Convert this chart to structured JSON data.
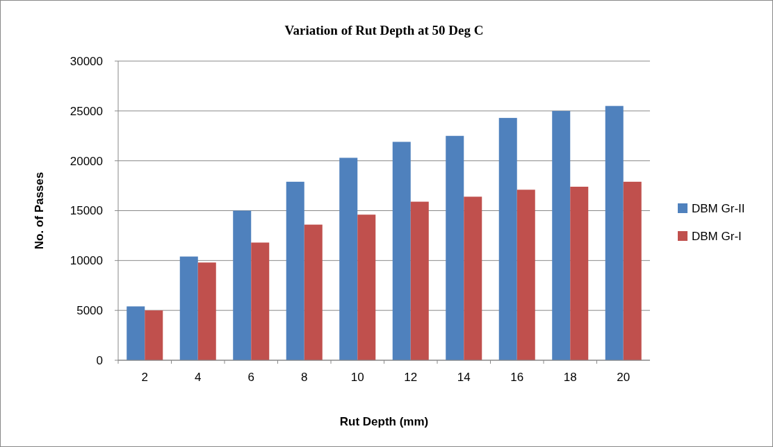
{
  "chart_data": {
    "type": "bar",
    "title": "Variation  of Rut Depth at 50 Deg C",
    "xlabel": "Rut Depth (mm)",
    "ylabel": "No. of Passes",
    "categories": [
      "2",
      "4",
      "6",
      "8",
      "10",
      "12",
      "14",
      "16",
      "18",
      "20"
    ],
    "series": [
      {
        "name": "DBM Gr-II",
        "color": "#4f81bd",
        "values": [
          5400,
          10400,
          15000,
          17900,
          20300,
          21900,
          22500,
          24300,
          25000,
          25500
        ]
      },
      {
        "name": "DBM Gr-I",
        "color": "#c0504d",
        "values": [
          5000,
          9800,
          11800,
          13600,
          14600,
          15900,
          16400,
          17100,
          17400,
          17900
        ]
      }
    ],
    "ylim": [
      0,
      30000
    ],
    "yticks": [
      0,
      5000,
      10000,
      15000,
      20000,
      25000,
      30000
    ],
    "grid": "y",
    "legend": "right"
  }
}
